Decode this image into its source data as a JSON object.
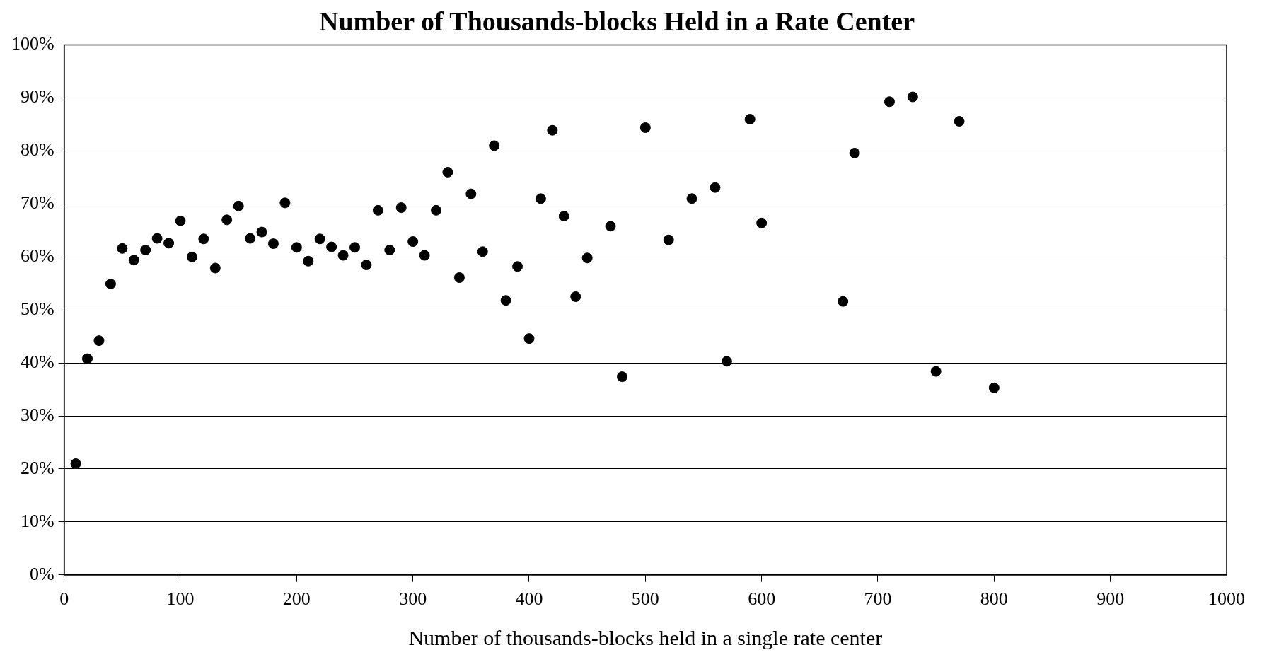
{
  "chart_data": {
    "type": "scatter",
    "title": "Number of Thousands-blocks Held in a Rate Center",
    "xlabel": "Number of thousands-blocks held in a single rate center",
    "x": [
      10,
      20,
      30,
      40,
      50,
      60,
      70,
      80,
      90,
      100,
      110,
      120,
      130,
      140,
      150,
      160,
      170,
      180,
      190,
      200,
      210,
      220,
      230,
      240,
      250,
      260,
      270,
      280,
      290,
      300,
      310,
      320,
      330,
      340,
      350,
      360,
      370,
      380,
      390,
      400,
      410,
      420,
      430,
      440,
      450,
      470,
      480,
      500,
      520,
      540,
      560,
      570,
      590,
      600,
      670,
      680,
      710,
      730,
      750,
      770,
      800
    ],
    "series": [
      {
        "color": "#000000",
        "values": [
          21,
          40.8,
          44.2,
          54.9,
          61.6,
          59.4,
          61.3,
          63.5,
          62.6,
          66.8,
          60,
          63.4,
          57.9,
          67,
          69.6,
          63.5,
          64.7,
          62.5,
          70.2,
          61.8,
          59.2,
          63.4,
          61.9,
          60.3,
          61.8,
          58.5,
          68.8,
          61.3,
          69.3,
          62.9,
          60.3,
          68.8,
          76,
          56.1,
          71.9,
          61,
          81,
          51.8,
          58.2,
          44.6,
          71,
          83.9,
          67.7,
          52.5,
          59.8,
          65.8,
          37.4,
          84.4,
          63.2,
          71,
          73.1,
          40.3,
          86,
          66.4,
          51.6,
          79.6,
          89.3,
          90.2,
          38.4,
          85.6,
          35.3
        ]
      }
    ],
    "xlim": [
      0,
      1000
    ],
    "xticks": [
      0,
      100,
      200,
      300,
      400,
      500,
      600,
      700,
      800,
      900,
      1000
    ],
    "ylim": [
      0,
      100
    ],
    "yticks": [
      {
        "value": 0,
        "label": "0%"
      },
      {
        "value": 10,
        "label": "10%"
      },
      {
        "value": 20,
        "label": "20%"
      },
      {
        "value": 30,
        "label": "30%"
      },
      {
        "value": 40,
        "label": "40%"
      },
      {
        "value": 50,
        "label": "50%"
      },
      {
        "value": 60,
        "label": "60%"
      },
      {
        "value": 70,
        "label": "70%"
      },
      {
        "value": 80,
        "label": "80%"
      },
      {
        "value": 90,
        "label": "90%"
      },
      {
        "value": 100,
        "label": "100%"
      }
    ],
    "grid": "y",
    "legend": false,
    "marker": "circle"
  }
}
